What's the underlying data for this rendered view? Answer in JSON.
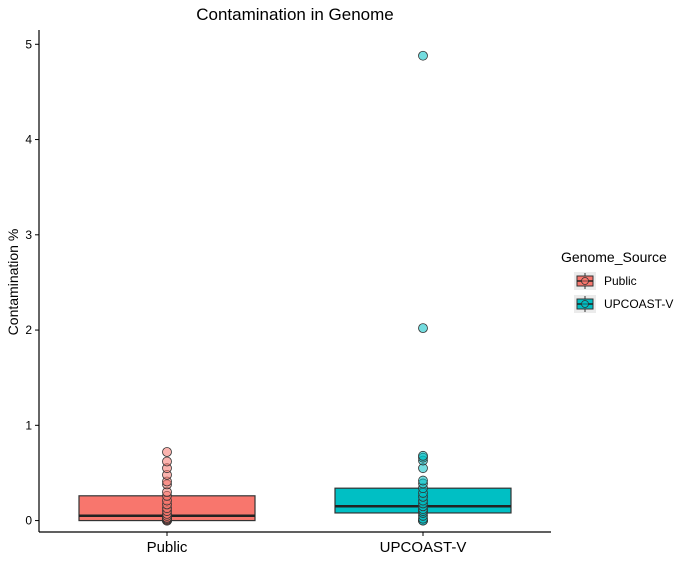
{
  "chart_data": {
    "type": "box",
    "title": "Contamination in Genome",
    "xlabel": "",
    "ylabel": "Contamination %",
    "categories": [
      "Public",
      "UPCOAST-V"
    ],
    "ylim": [
      -0.12,
      5.15
    ],
    "yticks": [
      0,
      1,
      2,
      3,
      4,
      5
    ],
    "grid": false,
    "legend": {
      "title": "Genome_Source",
      "placement": "right",
      "entries": [
        "Public",
        "UPCOAST-V"
      ]
    },
    "colors": {
      "Public": "#F8766D",
      "UPCOAST-V": "#00BFC4"
    },
    "series": [
      {
        "name": "Public",
        "box": {
          "q1": 0.0,
          "median": 0.05,
          "q3": 0.26,
          "min": 0.0,
          "max": 0.26
        },
        "points": [
          0,
          0,
          0,
          0,
          0.01,
          0.02,
          0.03,
          0.05,
          0.07,
          0.1,
          0.13,
          0.17,
          0.21,
          0.26,
          0.3,
          0.38,
          0.41,
          0.48,
          0.55,
          0.62,
          0.72
        ]
      },
      {
        "name": "UPCOAST-V",
        "box": {
          "q1": 0.08,
          "median": 0.15,
          "q3": 0.34,
          "min": 0.0,
          "max": 0.34
        },
        "points": [
          0,
          0,
          0,
          0.02,
          0.05,
          0.08,
          0.1,
          0.12,
          0.15,
          0.18,
          0.21,
          0.25,
          0.29,
          0.34,
          0.39,
          0.42,
          0.55,
          0.63,
          0.66,
          0.68,
          2.02,
          4.88
        ]
      }
    ]
  }
}
